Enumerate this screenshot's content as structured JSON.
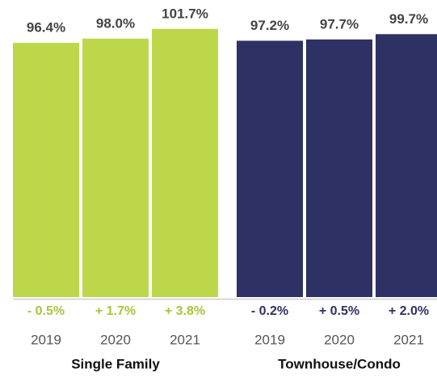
{
  "chart_data": [
    {
      "type": "bar",
      "title": "Single Family",
      "categories": [
        "2019",
        "2020",
        "2021"
      ],
      "values": [
        96.4,
        98.0,
        101.7
      ],
      "value_labels": [
        "96.4%",
        "98.0%",
        "101.7%"
      ],
      "changes": [
        -0.5,
        1.7,
        3.8
      ],
      "change_labels": [
        "- 0.5%",
        "+ 1.7%",
        "+ 3.8%"
      ],
      "color": "#bcd84a",
      "change_color": "#a9c43c",
      "ylim": [
        0,
        105
      ]
    },
    {
      "type": "bar",
      "title": "Townhouse/Condo",
      "categories": [
        "2019",
        "2020",
        "2021"
      ],
      "values": [
        97.2,
        97.7,
        99.7
      ],
      "value_labels": [
        "97.2%",
        "97.7%",
        "99.7%"
      ],
      "changes": [
        -0.2,
        0.5,
        2.0
      ],
      "change_labels": [
        "- 0.2%",
        "+ 0.5%",
        "+ 2.0%"
      ],
      "color": "#2e3164",
      "change_color": "#2e3164",
      "ylim": [
        0,
        105
      ]
    }
  ]
}
